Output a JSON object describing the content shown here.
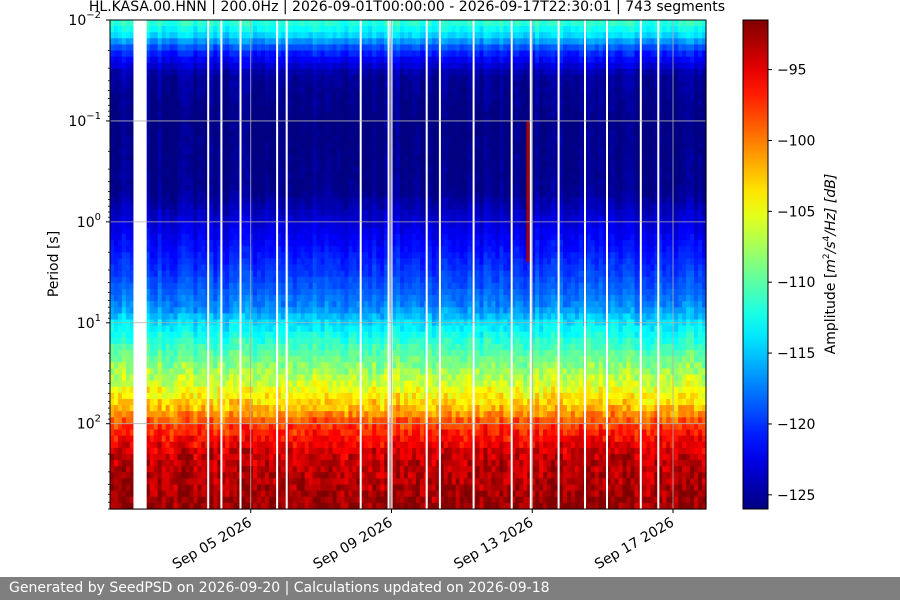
{
  "chart_data": {
    "type": "heatmap",
    "title": "HL.KASA.00.HNN | 200.0Hz | 2026-09-01T00:00:00 - 2026-09-17T22:30:01 | 743 segments",
    "xlabel": "",
    "ylabel": "Period [s]",
    "x_axis": {
      "type": "date",
      "range": [
        "2026-09-01T00:00:00",
        "2026-09-17T22:30:01"
      ],
      "ticks": [
        "2026-09-05",
        "2026-09-09",
        "2026-09-13",
        "2026-09-17"
      ],
      "tick_labels": [
        "Sep 05 2026",
        "Sep 09 2026",
        "Sep 13 2026",
        "Sep 17 2026"
      ]
    },
    "y_axis": {
      "scale": "log",
      "inverted": true,
      "range": [
        0.01,
        700
      ],
      "ticks": [
        0.01,
        0.1,
        1,
        10,
        100
      ],
      "tick_labels": [
        {
          "base": "10",
          "exp": "−2"
        },
        {
          "base": "10",
          "exp": "−1"
        },
        {
          "base": "10",
          "exp": "0"
        },
        {
          "base": "10",
          "exp": "1"
        },
        {
          "base": "10",
          "exp": "2"
        }
      ]
    },
    "colorbar": {
      "label_prefix": "Amplitude [",
      "label_unit": "m",
      "label_unit_exp1": "2",
      "label_mid": "/s",
      "label_unit_exp2": "4",
      "label_suffix": "/Hz] [dB]",
      "colormap": "jet",
      "range": [
        -126,
        -91.5
      ],
      "ticks": [
        -95,
        -100,
        -105,
        -110,
        -115,
        -120,
        -125
      ],
      "tick_labels": [
        "−95",
        "−100",
        "−105",
        "−110",
        "−115",
        "−120",
        "−125"
      ]
    },
    "data_gap": {
      "start": "2026-09-01T16:00:00",
      "end": "2026-09-02T01:00:00"
    },
    "segment_gaps": [
      "2026-09-03T19:00:00",
      "2026-09-04T04:00:00",
      "2026-09-04T17:00:00",
      "2026-09-05T18:00:00",
      "2026-09-06T00:30:00",
      "2026-09-08T03:00:00",
      "2026-09-08T22:00:00",
      "2026-09-09T00:00:00",
      "2026-09-10T00:00:00",
      "2026-09-10T09:00:00",
      "2026-09-11T08:00:00",
      "2026-09-12T10:00:00",
      "2026-09-12T23:00:00",
      "2026-09-13T18:00:00",
      "2026-09-14T12:00:00",
      "2026-09-15T03:00:00",
      "2026-09-16T02:00:00",
      "2026-09-16T14:00:00"
    ],
    "event": {
      "time": "2026-09-12T21:00:00",
      "period_range": [
        0.1,
        2.5
      ],
      "amplitude_db": -93
    },
    "spectral_profile": [
      {
        "period": 0.01,
        "amplitude_db": -111
      },
      {
        "period": 0.014,
        "amplitude_db": -114
      },
      {
        "period": 0.02,
        "amplitude_db": -120
      },
      {
        "period": 0.035,
        "amplitude_db": -125
      },
      {
        "period": 0.1,
        "amplitude_db": -126
      },
      {
        "period": 0.5,
        "amplitude_db": -125.5
      },
      {
        "period": 1,
        "amplitude_db": -123
      },
      {
        "period": 2,
        "amplitude_db": -121
      },
      {
        "period": 4,
        "amplitude_db": -119
      },
      {
        "period": 7,
        "amplitude_db": -117
      },
      {
        "period": 10,
        "amplitude_db": -114
      },
      {
        "period": 20,
        "amplitude_db": -110
      },
      {
        "period": 40,
        "amplitude_db": -106
      },
      {
        "period": 70,
        "amplitude_db": -102
      },
      {
        "period": 100,
        "amplitude_db": -98
      },
      {
        "period": 200,
        "amplitude_db": -94
      },
      {
        "period": 400,
        "amplitude_db": -93
      },
      {
        "period": 700,
        "amplitude_db": -92
      }
    ],
    "grid": true
  },
  "footer": {
    "text": "Generated by SeedPSD on 2026-09-20 | Calculations updated on 2026-09-18"
  }
}
